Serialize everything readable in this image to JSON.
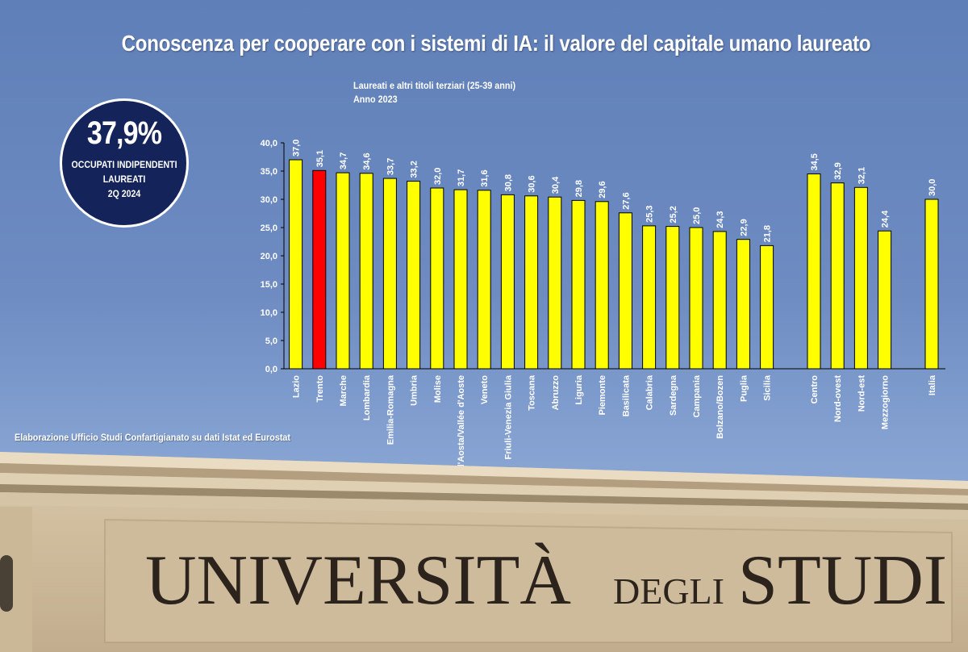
{
  "title": "Conoscenza per cooperare con i sistemi di IA: il valore del capitale umano laureato",
  "badge": {
    "value": "37,9%",
    "line1": "OCCUPATI INDIPENDENTI",
    "line2": "LAUREATI",
    "line3": "2Q 2024"
  },
  "source": "Elaborazione Ufficio Studi Confartigianato su dati Istat ed Eurostat",
  "building_text": {
    "word1": "UNIVERSITÀ",
    "word2": "DEGLI",
    "word3": "STUDI"
  },
  "colors": {
    "bar": "#ffff00",
    "highlight": "#ff0000",
    "badge": "#14235a",
    "sky": "#6e8cc2"
  },
  "chart_data": {
    "type": "bar",
    "subtitle_lines": [
      "Laureati e altri titoli terziari (25-39 anni)",
      "Anno 2023"
    ],
    "categories": [
      "Lazio",
      "Trento",
      "Marche",
      "Lombardia",
      "Emilia-Romagna",
      "Umbria",
      "Molise",
      "Valle d'Aosta/Vallée d'Aoste",
      "Veneto",
      "Friuli-Venezia Giulia",
      "Toscana",
      "Abruzzo",
      "Liguria",
      "Piemonte",
      "Basilicata",
      "Calabria",
      "Sardegna",
      "Campania",
      "Bolzano/Bozen",
      "Puglia",
      "Sicilia",
      "Centro",
      "Nord-ovest",
      "Nord-est",
      "Mezzogiorno",
      "Italia"
    ],
    "values": [
      37.0,
      35.1,
      34.7,
      34.6,
      33.7,
      33.2,
      32.0,
      31.7,
      31.6,
      30.8,
      30.6,
      30.4,
      29.8,
      29.6,
      27.6,
      25.3,
      25.2,
      25.0,
      24.3,
      22.9,
      21.8,
      34.5,
      32.9,
      32.1,
      24.4,
      30.0
    ],
    "value_labels": [
      "37,0",
      "35,1",
      "34,7",
      "34,6",
      "33,7",
      "33,2",
      "32,0",
      "31,7",
      "31,6",
      "30,8",
      "30,6",
      "30,4",
      "29,8",
      "29,6",
      "27,6",
      "25,3",
      "25,2",
      "25,0",
      "24,3",
      "22,9",
      "21,8",
      "34,5",
      "32,9",
      "32,1",
      "24,4",
      "30,0"
    ],
    "highlight": "Trento",
    "ylim": [
      0,
      40
    ],
    "yticks": [
      "0,0",
      "5,0",
      "10,0",
      "15,0",
      "20,0",
      "25,0",
      "30,0",
      "35,0",
      "40,0"
    ],
    "grid": false,
    "legend": "none"
  }
}
